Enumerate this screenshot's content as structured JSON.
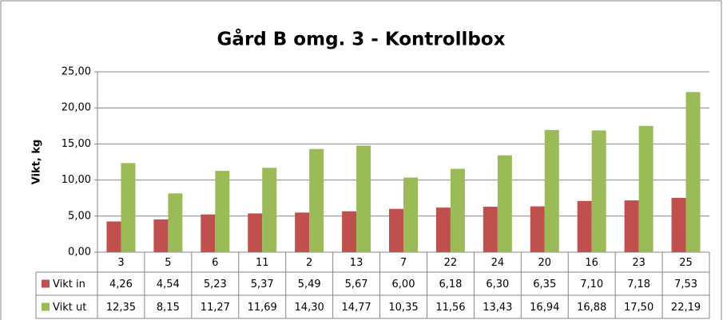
{
  "chart_data": {
    "type": "bar",
    "title": "Gård B omg. 3 - Kontrollbox",
    "y_label": "Vikt, kg",
    "categories": [
      "3",
      "5",
      "6",
      "11",
      "2",
      "13",
      "7",
      "22",
      "24",
      "20",
      "16",
      "23",
      "25"
    ],
    "series": [
      {
        "name": "Vikt in",
        "color": "#c0504d",
        "values": [
          4.26,
          4.54,
          5.23,
          5.37,
          5.49,
          5.67,
          6.0,
          6.18,
          6.3,
          6.35,
          7.1,
          7.18,
          7.53
        ],
        "value_labels": [
          "4,26",
          "4,54",
          "5,23",
          "5,37",
          "5,49",
          "5,67",
          "6,00",
          "6,18",
          "6,30",
          "6,35",
          "7,10",
          "7,18",
          "7,53"
        ]
      },
      {
        "name": "Vikt ut",
        "color": "#9bbb59",
        "values": [
          12.35,
          8.15,
          11.27,
          11.69,
          14.3,
          14.77,
          10.35,
          11.56,
          13.43,
          16.94,
          16.88,
          17.5,
          22.19
        ],
        "value_labels": [
          "12,35",
          "8,15",
          "11,27",
          "11,69",
          "14,30",
          "14,77",
          "10,35",
          "11,56",
          "13,43",
          "16,94",
          "16,88",
          "17,50",
          "22,19"
        ]
      }
    ],
    "ylim": [
      0,
      25
    ],
    "yticks": [
      {
        "value": 0,
        "label": "0,00"
      },
      {
        "value": 5,
        "label": "5,00"
      },
      {
        "value": 10,
        "label": "10,00"
      },
      {
        "value": 15,
        "label": "15,00"
      },
      {
        "value": 20,
        "label": "20,00"
      },
      {
        "value": 25,
        "label": "25,00"
      }
    ],
    "grid": true
  }
}
